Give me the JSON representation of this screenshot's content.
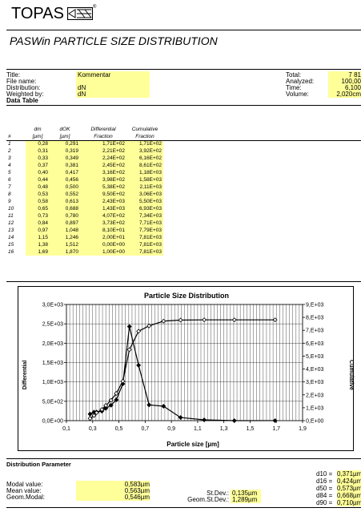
{
  "header": {
    "logo": "TOPAS",
    "title": "PASWin PARTICLE SIZE DISTRIBUTION"
  },
  "info": {
    "title_label": "Title:",
    "title_value": "Kommentar",
    "file_label": "File name:",
    "file_value": "",
    "distribution_label": "Distribution:",
    "distribution_value": "dN",
    "weighted_label": "Weighted by:",
    "weighted_value": "dN",
    "total_label": "Total:",
    "total_value": "7 81",
    "analyzed_label": "Analyzed:",
    "analyzed_value": "100,00",
    "time_label": "Time:",
    "time_value": "6,100",
    "volume_label": "Volume:",
    "volume_value": "2,020cm"
  },
  "data_table": {
    "section_title": "Data Table",
    "headers": [
      "dm",
      "dOK",
      "Differential",
      "Cumulative"
    ],
    "subheaders": [
      "#",
      "[µm]",
      "[µm]",
      "Fraction",
      "Fraction"
    ],
    "rows": [
      [
        "1",
        "0,28",
        "0,291",
        "1,71E+02",
        "1,71E+02"
      ],
      [
        "2",
        "0,31",
        "0,319",
        "2,21E+02",
        "3,92E+02"
      ],
      [
        "3",
        "0,33",
        "0,349",
        "2,24E+02",
        "6,16E+02"
      ],
      [
        "4",
        "0,37",
        "0,381",
        "2,45E+02",
        "8,61E+02"
      ],
      [
        "5",
        "0,40",
        "0,417",
        "3,16E+02",
        "1,18E+03"
      ],
      [
        "6",
        "0,44",
        "0,456",
        "3,98E+02",
        "1,58E+03"
      ],
      [
        "7",
        "0,48",
        "0,500",
        "5,38E+02",
        "2,11E+03"
      ],
      [
        "8",
        "0,53",
        "0,552",
        "9,50E+02",
        "3,06E+03"
      ],
      [
        "9",
        "0,58",
        "0,613",
        "2,43E+03",
        "5,50E+03"
      ],
      [
        "10",
        "0,65",
        "0,688",
        "1,43E+03",
        "6,93E+03"
      ],
      [
        "11",
        "0,73",
        "0,780",
        "4,07E+02",
        "7,34E+03"
      ],
      [
        "12",
        "0,84",
        "0,897",
        "3,73E+02",
        "7,71E+03"
      ],
      [
        "13",
        "0,97",
        "1,048",
        "8,10E+01",
        "7,79E+03"
      ],
      [
        "14",
        "1,15",
        "1,246",
        "2,00E+01",
        "7,81E+03"
      ],
      [
        "15",
        "1,38",
        "1,512",
        "0,00E+00",
        "7,81E+03"
      ],
      [
        "16",
        "1,69",
        "1,870",
        "1,00E+00",
        "7,81E+03"
      ]
    ]
  },
  "chart_data": {
    "type": "line",
    "title": "Particle Size Distribution",
    "xlabel": "Particle size [µm]",
    "ylabel": "Differential",
    "y2label": "Cumulative",
    "xlim": [
      0.1,
      1.9
    ],
    "ylim": [
      0,
      3000
    ],
    "y2lim": [
      0,
      9000
    ],
    "x_ticks": [
      "0,1",
      "0,3",
      "0,5",
      "0,7",
      "0,9",
      "1,1",
      "1,3",
      "1,5",
      "1,7",
      "1,9"
    ],
    "y_ticks": [
      "0,0E+00",
      "5,0E+02",
      "1,0E+03",
      "1,5E+03",
      "2,0E+03",
      "2,5E+03",
      "3,0E+03"
    ],
    "y2_ticks": [
      "0,E+00",
      "1,E+03",
      "2,E+03",
      "3,E+03",
      "4,E+03",
      "5,E+03",
      "6,E+03",
      "7,E+03",
      "8,E+03",
      "9,E+03"
    ],
    "grid": true,
    "series": [
      {
        "axis": "left",
        "marker": "filled-diamond",
        "x": [
          0.28,
          0.31,
          0.33,
          0.37,
          0.4,
          0.44,
          0.48,
          0.53,
          0.58,
          0.65,
          0.73,
          0.84,
          0.97,
          1.15,
          1.38,
          1.69
        ],
        "values": [
          171,
          221,
          224,
          245,
          316,
          398,
          538,
          950,
          2430,
          1430,
          407,
          373,
          81,
          20,
          0,
          1
        ]
      },
      {
        "axis": "right",
        "marker": "open-diamond",
        "x": [
          0.28,
          0.31,
          0.33,
          0.37,
          0.4,
          0.44,
          0.48,
          0.53,
          0.58,
          0.65,
          0.73,
          0.84,
          0.97,
          1.15,
          1.38,
          1.69
        ],
        "values": [
          171,
          392,
          616,
          861,
          1180,
          1580,
          2110,
          3060,
          5500,
          6930,
          7340,
          7710,
          7790,
          7810,
          7810,
          7810
        ]
      }
    ]
  },
  "distribution_parameter": {
    "section_title": "Distribution Parameter",
    "modal_label": "Modal value:",
    "modal_value": "0,583µm",
    "mean_label": "Mean value:",
    "mean_value": "0,563µm",
    "geom_modal_label": "Geom.Modal:",
    "geom_modal_value": "0,546µm",
    "stdev_label": "St.Dev.:",
    "stdev_value": "0,135µm",
    "geom_stdev_label": "Geom.St.Dev.:",
    "geom_stdev_value": "1,289µm",
    "d10_label": "d10 =",
    "d10_value": "0,371µm",
    "d16_label": "d16 =",
    "d16_value": "0,424µm",
    "d50_label": "d50 =",
    "d50_value": "0,573µm",
    "d84_label": "d84 =",
    "d84_value": "0,668µm",
    "d90_label": "d90 =",
    "d90_value": "0,710µm"
  }
}
